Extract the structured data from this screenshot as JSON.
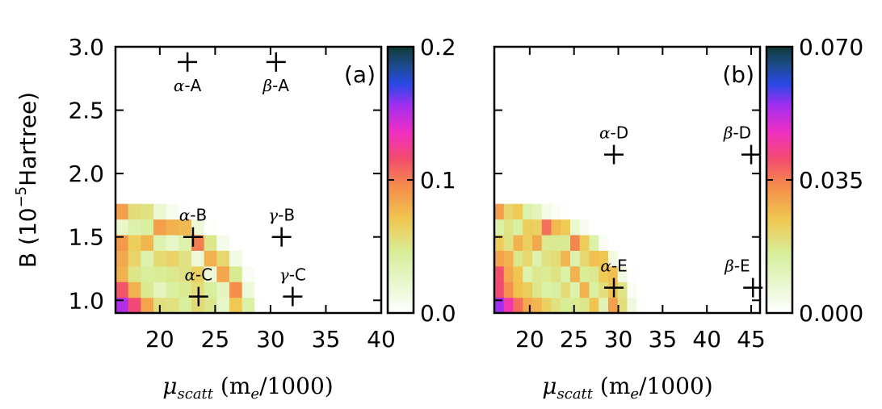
{
  "chart_data": [
    {
      "id": "a",
      "type": "heatmap",
      "panel_label": "(a)",
      "xlabel_parts": [
        "μ",
        "scatt",
        " (m",
        "e",
        "/1000)"
      ],
      "ylabel": "B (10",
      "ylabel_exp": "−5",
      "ylabel_end": "Hartree)",
      "xlim": [
        16,
        40
      ],
      "ylim": [
        0.9,
        3.0
      ],
      "xticks": [
        20,
        25,
        30,
        35,
        40
      ],
      "yticks": [
        1.0,
        1.5,
        2.0,
        2.5,
        3.0
      ],
      "ytick_labels": [
        "1.0",
        "1.5",
        "2.0",
        "2.5",
        "3.0"
      ],
      "colorbar": {
        "min": 0.0,
        "max": 0.2,
        "ticks": [
          0.0,
          0.1,
          0.2
        ],
        "tick_labels": [
          "0.0",
          "0.1",
          "0.2"
        ]
      },
      "grid": {
        "nx": 21,
        "ny": 17,
        "bands": [
          0.84,
          0.62,
          0.46
        ]
      },
      "markers": [
        {
          "greek": "α",
          "label": "-A",
          "x": 22.5,
          "y": 2.88,
          "label_pos": "below"
        },
        {
          "greek": "β",
          "label": "-A",
          "x": 30.5,
          "y": 2.88,
          "label_pos": "below"
        },
        {
          "greek": "α",
          "label": "-B",
          "x": 23.0,
          "y": 1.5,
          "label_pos": "above"
        },
        {
          "greek": "γ",
          "label": "-B",
          "x": 31.0,
          "y": 1.5,
          "label_pos": "above"
        },
        {
          "greek": "α",
          "label": "-C",
          "x": 23.5,
          "y": 1.03,
          "label_pos": "above"
        },
        {
          "greek": "γ",
          "label": "-C",
          "x": 32.0,
          "y": 1.03,
          "label_pos": "above"
        }
      ]
    },
    {
      "id": "b",
      "type": "heatmap",
      "panel_label": "(b)",
      "xlabel_parts": [
        "μ",
        "scatt",
        " (m",
        "e",
        "/1000)"
      ],
      "xlim": [
        16,
        46
      ],
      "ylim": [
        0.9,
        3.0
      ],
      "xticks": [
        20,
        25,
        30,
        35,
        40,
        45
      ],
      "yticks": [
        1.0,
        1.5,
        2.0,
        2.5,
        3.0
      ],
      "colorbar": {
        "min": 0.0,
        "max": 0.07,
        "ticks": [
          0.0,
          0.035,
          0.07
        ],
        "tick_labels": [
          "0.000",
          "0.035",
          "0.070"
        ]
      },
      "grid": {
        "nx": 28,
        "ny": 17,
        "bands": [
          0.84,
          0.66,
          0.5,
          0.36
        ]
      },
      "markers": [
        {
          "greek": "α",
          "label": "-D",
          "x": 29.5,
          "y": 2.15,
          "label_pos": "above"
        },
        {
          "greek": "β",
          "label": "-D",
          "x": 45.0,
          "y": 2.15,
          "label_pos": "above"
        },
        {
          "greek": "α",
          "label": "-E",
          "x": 29.5,
          "y": 1.1,
          "label_pos": "above"
        },
        {
          "greek": "β",
          "label": "-E",
          "x": 45.2,
          "y": 1.1,
          "label_pos": "above"
        }
      ]
    }
  ]
}
